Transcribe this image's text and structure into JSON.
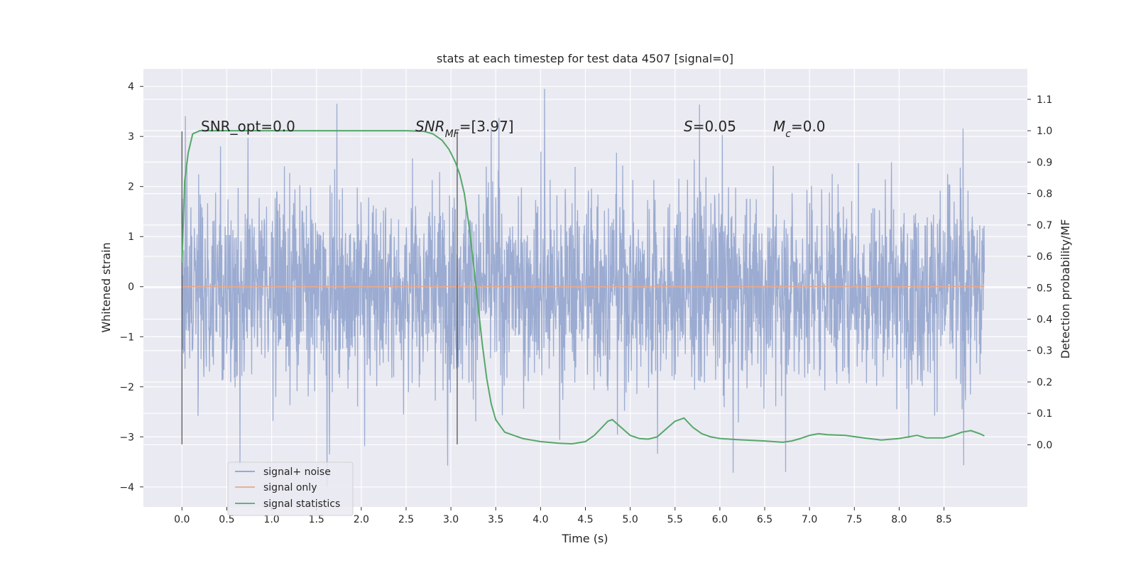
{
  "chart_data": {
    "type": "line",
    "title": "stats at each timestep for test data 4507 [signal=0]",
    "xlabel": "Time (s)",
    "ylabel": "Whitened strain",
    "y2label": "Detection probability/MF",
    "xlim": [
      -0.43,
      9.43
    ],
    "ylim": [
      -4.4,
      4.35
    ],
    "y2lim": [
      -0.198,
      1.197
    ],
    "x_ticks": [
      "0.0",
      "0.5",
      "1.0",
      "1.5",
      "2.0",
      "2.5",
      "3.0",
      "3.5",
      "4.0",
      "4.5",
      "5.0",
      "5.5",
      "6.0",
      "6.5",
      "7.0",
      "7.5",
      "8.0",
      "8.5"
    ],
    "y_ticks": [
      "4",
      "3",
      "2",
      "1",
      "0",
      "−1",
      "−2",
      "−3",
      "−4"
    ],
    "y2_ticks": [
      "1.1",
      "1.0",
      "0.9",
      "0.8",
      "0.7",
      "0.6",
      "0.5",
      "0.4",
      "0.3",
      "0.2",
      "0.1",
      "0.0"
    ],
    "grid": true,
    "legend_position": "lower-left",
    "annotations": {
      "snr_opt": "SNR_opt=0.0",
      "snr_mf_main": "SNR",
      "snr_mf_sub": "MF",
      "snr_mf_value": "=[3.97]",
      "s_main": "S",
      "s_value": "=0.05",
      "mc_main": "M",
      "mc_sub": "c",
      "mc_value": "=0.0"
    },
    "vertical_markers": [
      0.0,
      3.07
    ],
    "series": [
      {
        "name": "signal+ noise",
        "color": "#8da0cb",
        "kind": "noise",
        "x_range": [
          0.0,
          8.95
        ],
        "approx_std": 0.95,
        "approx_min": -4.0,
        "approx_max": 3.95
      },
      {
        "name": "signal only",
        "color": "#e8a98a",
        "x": [
          0.0,
          8.95
        ],
        "values": [
          0.0,
          0.0
        ]
      },
      {
        "name": "signal statistics",
        "color": "#55a868",
        "axis": "right",
        "x": [
          0.0,
          0.03,
          0.07,
          0.12,
          0.2,
          0.35,
          0.6,
          1.0,
          1.5,
          2.0,
          2.5,
          2.7,
          2.8,
          2.9,
          2.98,
          3.05,
          3.1,
          3.15,
          3.2,
          3.25,
          3.3,
          3.35,
          3.4,
          3.45,
          3.5,
          3.55,
          3.6,
          3.7,
          3.8,
          3.9,
          4.0,
          4.2,
          4.35,
          4.5,
          4.6,
          4.7,
          4.75,
          4.8,
          4.9,
          5.0,
          5.1,
          5.2,
          5.3,
          5.4,
          5.5,
          5.6,
          5.65,
          5.7,
          5.8,
          5.9,
          6.0,
          6.2,
          6.5,
          6.7,
          6.8,
          6.9,
          7.0,
          7.1,
          7.2,
          7.4,
          7.6,
          7.8,
          8.0,
          8.1,
          8.2,
          8.3,
          8.5,
          8.6,
          8.7,
          8.8,
          8.9,
          8.95
        ],
        "values": [
          0.58,
          0.84,
          0.93,
          0.99,
          1.0,
          1.0,
          1.0,
          1.0,
          1.0,
          1.0,
          1.0,
          0.998,
          0.99,
          0.97,
          0.94,
          0.9,
          0.86,
          0.8,
          0.7,
          0.58,
          0.45,
          0.32,
          0.21,
          0.13,
          0.08,
          0.06,
          0.04,
          0.03,
          0.02,
          0.015,
          0.01,
          0.005,
          0.003,
          0.01,
          0.03,
          0.06,
          0.075,
          0.08,
          0.055,
          0.03,
          0.02,
          0.018,
          0.025,
          0.05,
          0.075,
          0.085,
          0.07,
          0.055,
          0.035,
          0.025,
          0.02,
          0.016,
          0.012,
          0.008,
          0.012,
          0.02,
          0.03,
          0.035,
          0.032,
          0.03,
          0.022,
          0.015,
          0.02,
          0.025,
          0.03,
          0.022,
          0.022,
          0.03,
          0.04,
          0.045,
          0.035,
          0.028
        ]
      }
    ]
  }
}
